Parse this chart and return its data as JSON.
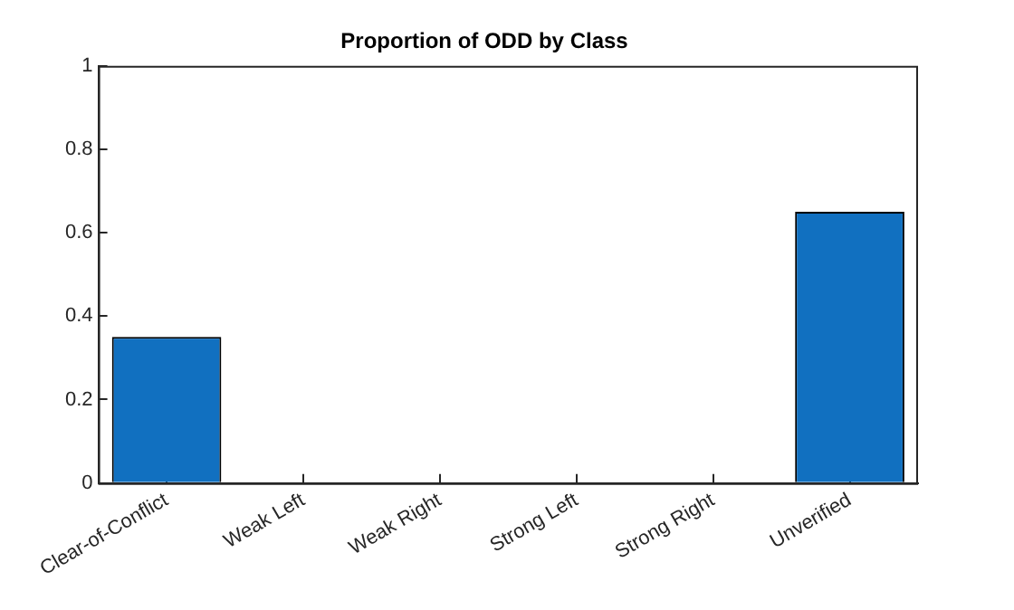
{
  "chart_data": {
    "type": "bar",
    "title": "Proportion of ODD by Class",
    "categories": [
      "Clear-of-Conflict",
      "Weak Left",
      "Weak Right",
      "Strong Left",
      "Strong Right",
      "Unverified"
    ],
    "values": [
      0.35,
      0,
      0,
      0,
      0,
      0.65
    ],
    "color": "#1170c0",
    "ylim": [
      0,
      1
    ],
    "yticks": [
      0,
      0.2,
      0.4,
      0.6,
      0.8,
      1
    ],
    "grid": false
  }
}
